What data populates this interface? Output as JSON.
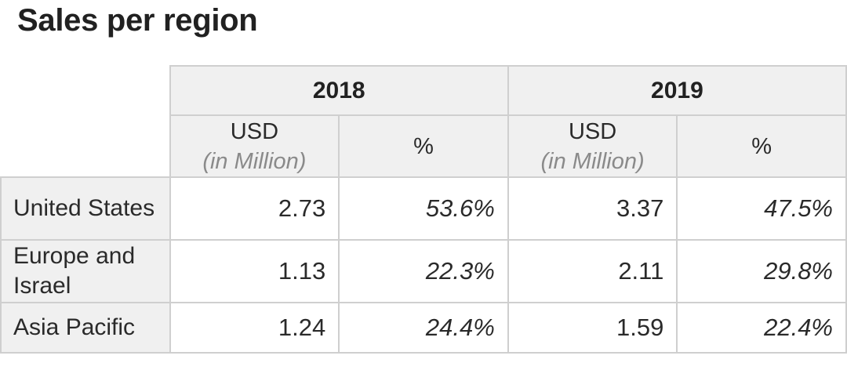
{
  "title": "Sales per region",
  "years": [
    "2018",
    "2019"
  ],
  "subheaders": {
    "usd": "USD",
    "usd_unit": "(in Million)",
    "pct": "%"
  },
  "rows": [
    {
      "region": "United States",
      "usd_2018": "2.73",
      "pct_2018": "53.6%",
      "usd_2019": "3.37",
      "pct_2019": "47.5%"
    },
    {
      "region": "Europe and Israel",
      "usd_2018": "1.13",
      "pct_2018": "22.3%",
      "usd_2019": "2.11",
      "pct_2019": "29.8%"
    },
    {
      "region": "Asia Pacific",
      "usd_2018": "1.24",
      "pct_2018": "24.4%",
      "usd_2019": "1.59",
      "pct_2019": "22.4%"
    }
  ]
}
